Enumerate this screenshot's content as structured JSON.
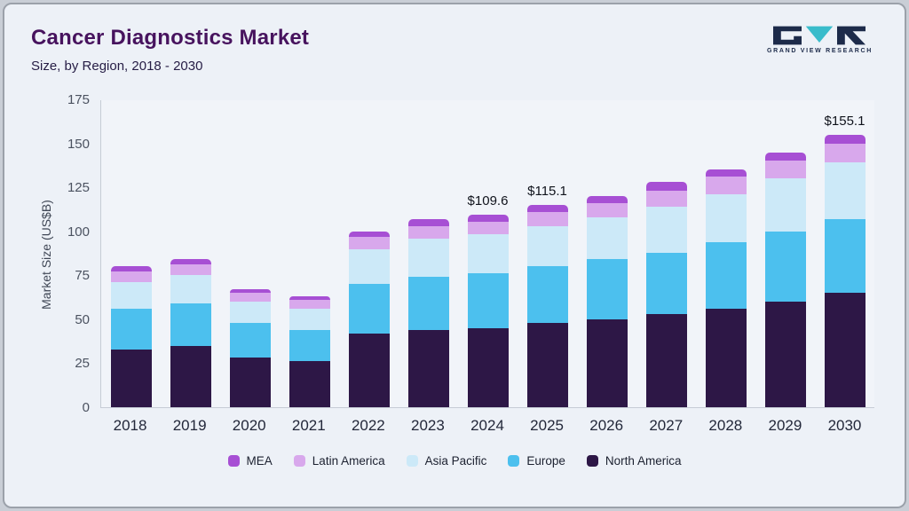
{
  "header": {
    "title": "Cancer Diagnostics Market",
    "subtitle": "Size, by Region, 2018 - 2030",
    "logo_text": "GRAND VIEW RESEARCH"
  },
  "chart_data": {
    "type": "bar",
    "stacked": true,
    "title": "Cancer Diagnostics Market Size, by Region, 2018 - 2030",
    "ylabel": "Market Size (US$B)",
    "ylim": [
      0,
      175
    ],
    "yticks": [
      0,
      25,
      50,
      75,
      100,
      125,
      150,
      175
    ],
    "grid": false,
    "legend_position": "bottom",
    "categories": [
      "2018",
      "2019",
      "2020",
      "2021",
      "2022",
      "2023",
      "2024",
      "2025",
      "2026",
      "2027",
      "2028",
      "2029",
      "2030"
    ],
    "series": [
      {
        "name": "North America",
        "color": "#2d1746",
        "values": [
          33,
          35,
          28,
          26,
          42,
          44,
          45,
          48,
          50,
          53,
          56,
          60,
          65
        ]
      },
      {
        "name": "Europe",
        "color": "#4cc0ee",
        "values": [
          23,
          24,
          20,
          18,
          28,
          30,
          31,
          32,
          34,
          35,
          38,
          40,
          42
        ]
      },
      {
        "name": "Asia Pacific",
        "color": "#cce9f8",
        "values": [
          15,
          16,
          12,
          12,
          20,
          22,
          22.6,
          23.1,
          24,
          26,
          27,
          30,
          32
        ]
      },
      {
        "name": "Latin America",
        "color": "#d8a8ec",
        "values": [
          6,
          6,
          5,
          5,
          7,
          7,
          7,
          8,
          8,
          9,
          10,
          10,
          11
        ]
      },
      {
        "name": "MEA",
        "color": "#a74fd4",
        "values": [
          3,
          3,
          2,
          2,
          3,
          4,
          4,
          4,
          4,
          5,
          4,
          5,
          5.1
        ]
      }
    ],
    "totals": [
      80,
      84,
      67,
      63,
      100,
      107,
      109.6,
      115.1,
      120,
      128,
      135,
      145,
      155.1
    ],
    "annotations": [
      {
        "category": "2024",
        "label": "$109.6"
      },
      {
        "category": "2025",
        "label": "$115.1"
      },
      {
        "category": "2030",
        "label": "$155.1"
      }
    ],
    "legend": [
      "MEA",
      "Latin America",
      "Asia Pacific",
      "Europe",
      "North America"
    ]
  }
}
